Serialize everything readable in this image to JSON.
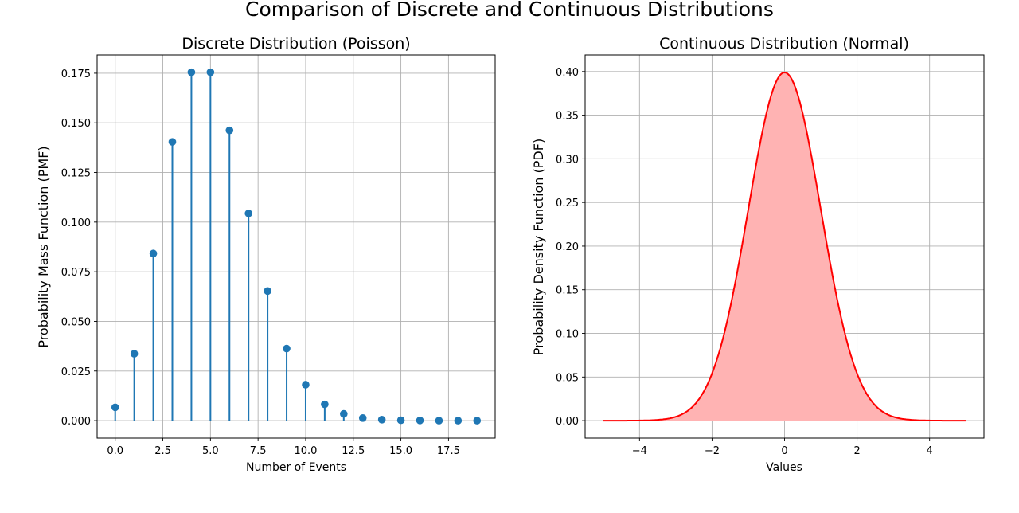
{
  "suptitle": "Comparison of Discrete and Continuous Distributions",
  "chart_data": [
    {
      "type": "stem",
      "title": "Discrete Distribution (Poisson)",
      "xlabel": "Number of Events",
      "ylabel": "Probability Mass Function (PMF)",
      "x": [
        0,
        1,
        2,
        3,
        4,
        5,
        6,
        7,
        8,
        9,
        10,
        11,
        12,
        13,
        14,
        15,
        16,
        17,
        18,
        19
      ],
      "values": [
        0.0067,
        0.0337,
        0.0842,
        0.1404,
        0.1755,
        0.1755,
        0.1462,
        0.1044,
        0.0653,
        0.0363,
        0.0181,
        0.0082,
        0.0034,
        0.0013,
        0.0005,
        0.0002,
        0.0001,
        0.0,
        0.0,
        0.0
      ],
      "xlim": [
        -0.95,
        19.95
      ],
      "ylim": [
        -0.0088,
        0.1842
      ],
      "xticks": [
        "0.0",
        "2.5",
        "5.0",
        "7.5",
        "10.0",
        "12.5",
        "15.0",
        "17.5"
      ],
      "xtick_values": [
        0,
        2.5,
        5,
        7.5,
        10,
        12.5,
        15,
        17.5
      ],
      "yticks": [
        "0.000",
        "0.025",
        "0.050",
        "0.075",
        "0.100",
        "0.125",
        "0.150",
        "0.175"
      ],
      "ytick_values": [
        0,
        0.025,
        0.05,
        0.075,
        0.1,
        0.125,
        0.15,
        0.175
      ],
      "grid": true,
      "color": "#1f77b4"
    },
    {
      "type": "area",
      "title": "Continuous Distribution (Normal)",
      "xlabel": "Values",
      "ylabel": "Probability Density Function (PDF)",
      "distribution": {
        "mean": 0,
        "std": 1,
        "x_range": [
          -5,
          5
        ]
      },
      "xlim": [
        -5.5,
        5.5
      ],
      "ylim": [
        -0.02,
        0.419
      ],
      "xticks": [
        "−4",
        "−2",
        "0",
        "2",
        "4"
      ],
      "xtick_values": [
        -4,
        -2,
        0,
        2,
        4
      ],
      "yticks": [
        "0.00",
        "0.05",
        "0.10",
        "0.15",
        "0.20",
        "0.25",
        "0.30",
        "0.35",
        "0.40"
      ],
      "ytick_values": [
        0,
        0.05,
        0.1,
        0.15,
        0.2,
        0.25,
        0.3,
        0.35,
        0.4
      ],
      "grid": true,
      "line_color": "#ff0000",
      "fill_color": "#ffb3b3"
    }
  ]
}
